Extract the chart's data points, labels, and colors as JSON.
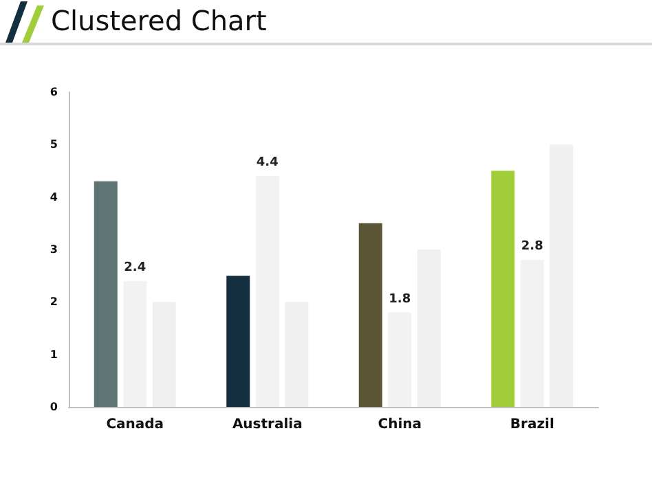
{
  "chart_data": {
    "type": "bar",
    "title": "Clustered Chart",
    "categories": [
      "Canada",
      "Australia",
      "China",
      "Brazil"
    ],
    "series": [
      {
        "colors": [
          "#5f7474",
          "#132f40",
          "#5b5536",
          "#a2cd3a"
        ],
        "values": [
          4.3,
          2.5,
          3.5,
          4.5
        ]
      },
      {
        "color": "#f2f2f2",
        "values": [
          2.4,
          4.4,
          1.8,
          2.8
        ],
        "value_labels": [
          "2.4",
          "4.4",
          "1.8",
          "2.8"
        ]
      },
      {
        "color": "#f0f0f0",
        "values": [
          2,
          2,
          3,
          5
        ]
      }
    ],
    "ylim": [
      0,
      6
    ],
    "yticks": [
      0,
      1,
      2,
      3,
      4,
      5,
      6
    ],
    "grid": false
  }
}
